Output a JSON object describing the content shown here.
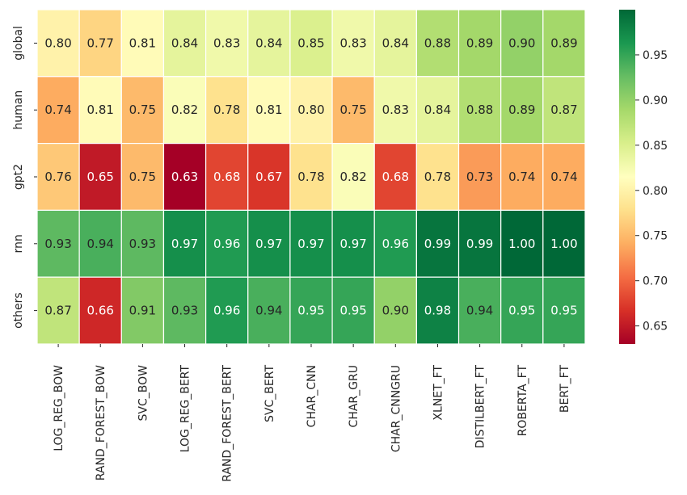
{
  "chart_data": {
    "type": "heatmap",
    "title": "",
    "xlabel": "",
    "ylabel": "",
    "x": [
      "LOG_REG_BOW",
      "RAND_FOREST_BOW",
      "SVC_BOW",
      "LOG_REG_BERT",
      "RAND_FOREST_BERT",
      "SVC_BERT",
      "CHAR_CNN",
      "CHAR_GRU",
      "CHAR_CNNGRU",
      "XLNET_FT",
      "DISTILBERT_FT",
      "ROBERTA_FT",
      "BERT_FT"
    ],
    "y": [
      "global",
      "human",
      "gpt2",
      "rnn",
      "others"
    ],
    "values": [
      [
        0.8,
        0.77,
        0.81,
        0.84,
        0.83,
        0.84,
        0.85,
        0.83,
        0.84,
        0.88,
        0.89,
        0.9,
        0.89
      ],
      [
        0.74,
        0.81,
        0.75,
        0.82,
        0.78,
        0.81,
        0.8,
        0.75,
        0.83,
        0.84,
        0.88,
        0.89,
        0.87
      ],
      [
        0.76,
        0.65,
        0.75,
        0.63,
        0.68,
        0.67,
        0.78,
        0.82,
        0.68,
        0.78,
        0.73,
        0.74,
        0.74
      ],
      [
        0.93,
        0.94,
        0.93,
        0.97,
        0.96,
        0.97,
        0.97,
        0.97,
        0.96,
        0.99,
        0.99,
        1.0,
        1.0
      ],
      [
        0.87,
        0.66,
        0.91,
        0.93,
        0.96,
        0.94,
        0.95,
        0.95,
        0.9,
        0.98,
        0.94,
        0.95,
        0.95
      ]
    ],
    "value_labels": [
      [
        "0.80",
        "0.77",
        "0.81",
        "0.84",
        "0.83",
        "0.84",
        "0.85",
        "0.83",
        "0.84",
        "0.88",
        "0.89",
        "0.90",
        "0.89"
      ],
      [
        "0.74",
        "0.81",
        "0.75",
        "0.82",
        "0.78",
        "0.81",
        "0.80",
        "0.75",
        "0.83",
        "0.84",
        "0.88",
        "0.89",
        "0.87"
      ],
      [
        "0.76",
        "0.65",
        "0.75",
        "0.63",
        "0.68",
        "0.67",
        "0.78",
        "0.82",
        "0.68",
        "0.78",
        "0.73",
        "0.74",
        "0.74"
      ],
      [
        "0.93",
        "0.94",
        "0.93",
        "0.97",
        "0.96",
        "0.97",
        "0.97",
        "0.97",
        "0.96",
        "0.99",
        "0.99",
        "1.00",
        "1.00"
      ],
      [
        "0.87",
        "0.66",
        "0.91",
        "0.93",
        "0.96",
        "0.94",
        "0.95",
        "0.95",
        "0.90",
        "0.98",
        "0.94",
        "0.95",
        "0.95"
      ]
    ],
    "colormap": "RdYlGn",
    "colorbar": {
      "range": [
        0.63,
        1.0
      ],
      "ticks": [
        0.65,
        0.7,
        0.75,
        0.8,
        0.85,
        0.9,
        0.95
      ],
      "tick_labels": [
        "0.65",
        "0.70",
        "0.75",
        "0.80",
        "0.85",
        "0.90",
        "0.95"
      ]
    },
    "annotations": true,
    "grid": false,
    "colors": {
      "RdYlGn_stops": [
        "#a50026",
        "#d73027",
        "#f46d43",
        "#fdae61",
        "#fee08b",
        "#ffffbf",
        "#d9ef8b",
        "#a6d96a",
        "#66bd63",
        "#1a9850",
        "#006837"
      ],
      "text_dark": "#262626",
      "text_light": "#ffffff",
      "cell_border": "#ffffff"
    }
  }
}
